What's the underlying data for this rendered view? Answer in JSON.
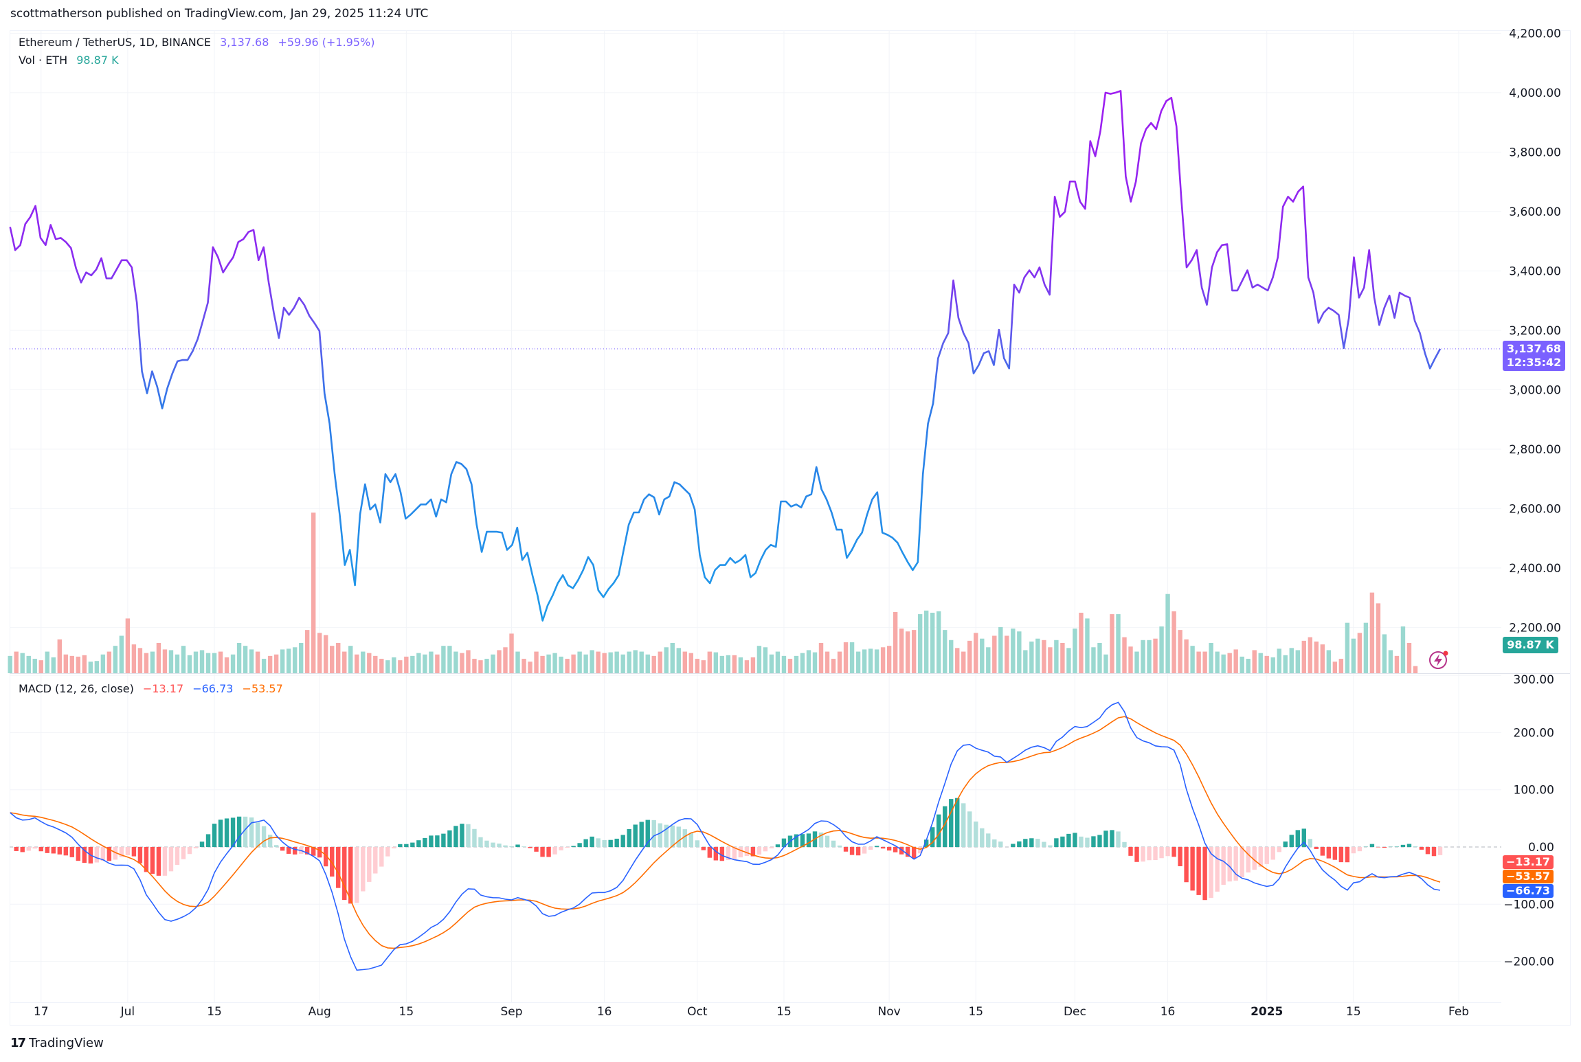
{
  "header": {
    "published": "scottmatherson published on TradingView.com, Jan 29, 2025 11:24 UTC"
  },
  "legend": {
    "symbol": "Ethereum / TetherUS, 1D, BINANCE",
    "price": "3,137.68",
    "change": "+59.96 (+1.95%)",
    "vol_label": "Vol · ETH",
    "vol_value": "98.87 K",
    "macd_label": "MACD (12, 26, close)",
    "macd_hist": "−13.17",
    "macd_line": "−66.73",
    "macd_signal": "−53.57"
  },
  "price_axis": [
    "4,200.00",
    "4,000.00",
    "3,800.00",
    "3,600.00",
    "3,400.00",
    "3,200.00",
    "3,000.00",
    "2,800.00",
    "2,600.00",
    "2,400.00",
    "2,200.00"
  ],
  "price_axis_values": [
    4200,
    4000,
    3800,
    3600,
    3400,
    3200,
    3000,
    2800,
    2600,
    2400,
    2200
  ],
  "macd_axis": [
    "300.00",
    "200.00",
    "100.00",
    "0.00",
    "−100.00",
    "−200.00"
  ],
  "macd_axis_values": [
    300,
    200,
    100,
    0,
    -100,
    -200
  ],
  "badges": {
    "last_price": "3,137.68",
    "countdown": "12:35:42",
    "volume": "98.87 K",
    "hist": "−13.17",
    "signal": "−53.57",
    "macd": "−66.73"
  },
  "time_axis": [
    {
      "label": "17",
      "date": "2024-06-17"
    },
    {
      "label": "Jul",
      "date": "2024-07-01"
    },
    {
      "label": "15",
      "date": "2024-07-15"
    },
    {
      "label": "Aug",
      "date": "2024-08-01"
    },
    {
      "label": "15",
      "date": "2024-08-15"
    },
    {
      "label": "Sep",
      "date": "2024-09-01"
    },
    {
      "label": "16",
      "date": "2024-09-16"
    },
    {
      "label": "Oct",
      "date": "2024-10-01"
    },
    {
      "label": "15",
      "date": "2024-10-15"
    },
    {
      "label": "Nov",
      "date": "2024-11-01"
    },
    {
      "label": "15",
      "date": "2024-11-15"
    },
    {
      "label": "Dec",
      "date": "2024-12-01"
    },
    {
      "label": "16",
      "date": "2024-12-16"
    },
    {
      "label": "2025",
      "date": "2025-01-01"
    },
    {
      "label": "15",
      "date": "2025-01-15"
    },
    {
      "label": "Feb",
      "date": "2025-02-01"
    }
  ],
  "footer": {
    "brand": "TradingView",
    "logo": "TV"
  },
  "colors": {
    "up": "#26a69a",
    "down": "#ef5350",
    "up_light": "#b2dfdb",
    "down_light": "#ffcdd2",
    "hist_up": "#26a69a",
    "hist_down": "#ff5252",
    "macd": "#2962ff",
    "signal": "#ff6d00",
    "price_hi": "#a21cf0",
    "price_lo": "#1e88e5",
    "badge_price": "#7b61ff"
  },
  "chart_data": [
    {
      "type": "line",
      "title": "Ethereum / TetherUS, 1D, BINANCE",
      "start_date": "2024-06-12",
      "end_date": "2025-01-29",
      "ylim": [
        2100,
        4250
      ],
      "close": [
        3548,
        3470,
        3487,
        3558,
        3582,
        3619,
        3511,
        3487,
        3555,
        3507,
        3511,
        3497,
        3477,
        3409,
        3361,
        3395,
        3385,
        3405,
        3443,
        3375,
        3375,
        3405,
        3436,
        3436,
        3412,
        3293,
        3062,
        2988,
        3062,
        3011,
        2937,
        3005,
        3055,
        3096,
        3100,
        3100,
        3130,
        3171,
        3232,
        3293,
        3480,
        3446,
        3395,
        3422,
        3446,
        3497,
        3507,
        3531,
        3538,
        3436,
        3480,
        3361,
        3259,
        3174,
        3276,
        3252,
        3276,
        3310,
        3286,
        3249,
        3225,
        3198,
        2988,
        2886,
        2716,
        2580,
        2410,
        2461,
        2342,
        2580,
        2682,
        2597,
        2614,
        2553,
        2716,
        2689,
        2716,
        2655,
        2566,
        2580,
        2597,
        2614,
        2614,
        2631,
        2573,
        2631,
        2621,
        2716,
        2757,
        2750,
        2733,
        2682,
        2546,
        2454,
        2522,
        2522,
        2522,
        2519,
        2461,
        2478,
        2536,
        2427,
        2451,
        2376,
        2308,
        2223,
        2274,
        2308,
        2349,
        2376,
        2342,
        2332,
        2359,
        2393,
        2437,
        2410,
        2325,
        2302,
        2329,
        2349,
        2376,
        2461,
        2546,
        2587,
        2587,
        2631,
        2648,
        2638,
        2580,
        2631,
        2641,
        2689,
        2682,
        2665,
        2648,
        2597,
        2444,
        2369,
        2349,
        2393,
        2410,
        2410,
        2434,
        2417,
        2427,
        2444,
        2369,
        2383,
        2427,
        2461,
        2478,
        2471,
        2624,
        2624,
        2607,
        2614,
        2604,
        2641,
        2648,
        2740,
        2665,
        2631,
        2587,
        2529,
        2529,
        2434,
        2461,
        2495,
        2519,
        2580,
        2631,
        2655,
        2519,
        2512,
        2502,
        2485,
        2451,
        2420,
        2393,
        2420,
        2716,
        2886,
        2954,
        3106,
        3157,
        3191,
        3368,
        3242,
        3191,
        3157,
        3055,
        3083,
        3123,
        3130,
        3083,
        3202,
        3106,
        3072,
        3354,
        3327,
        3378,
        3402,
        3378,
        3412,
        3354,
        3320,
        3650,
        3582,
        3599,
        3701,
        3701,
        3633,
        3609,
        3837,
        3786,
        3871,
        4000,
        3996,
        4000,
        4006,
        3718,
        3633,
        3701,
        3830,
        3877,
        3898,
        3877,
        3938,
        3972,
        3983,
        3887,
        3633,
        3412,
        3436,
        3470,
        3344,
        3286,
        3412,
        3463,
        3487,
        3490,
        3334,
        3334,
        3368,
        3402,
        3344,
        3354,
        3344,
        3334,
        3378,
        3446,
        3616,
        3650,
        3633,
        3667,
        3684,
        3378,
        3327,
        3225,
        3259,
        3276,
        3266,
        3252,
        3140,
        3242,
        3446,
        3310,
        3344,
        3470,
        3310,
        3218,
        3276,
        3317,
        3242,
        3327,
        3317,
        3310,
        3232,
        3191,
        3123,
        3072,
        3106,
        3137.68
      ]
    },
    {
      "type": "bar",
      "title": "Vol · ETH",
      "unit": "K",
      "values": [
        240,
        300,
        280,
        240,
        200,
        180,
        300,
        220,
        470,
        260,
        240,
        230,
        250,
        160,
        170,
        260,
        300,
        380,
        520,
        760,
        400,
        350,
        280,
        300,
        420,
        330,
        320,
        260,
        380,
        250,
        300,
        320,
        280,
        280,
        300,
        220,
        260,
        420,
        380,
        330,
        300,
        200,
        240,
        260,
        330,
        340,
        360,
        420,
        600,
        2230,
        560,
        530,
        380,
        420,
        300,
        380,
        260,
        300,
        280,
        240,
        200,
        180,
        220,
        180,
        230,
        240,
        280,
        260,
        300,
        260,
        380,
        380,
        300,
        280,
        320,
        200,
        180,
        200,
        260,
        320,
        360,
        550,
        300,
        200,
        160,
        300,
        240,
        260,
        280,
        230,
        200,
        260,
        300,
        260,
        320,
        300,
        280,
        290,
        300,
        260,
        300,
        320,
        300,
        260,
        240,
        300,
        360,
        420,
        350,
        300,
        280,
        200,
        180,
        300,
        290,
        240,
        250,
        250,
        220,
        180,
        220,
        380,
        360,
        260,
        300,
        240,
        200,
        240,
        280,
        320,
        290,
        420,
        300,
        200,
        300,
        430,
        430,
        300,
        330,
        340,
        330,
        360,
        380,
        850,
        620,
        580,
        600,
        820,
        870,
        840,
        860,
        600,
        460,
        350,
        300,
        450,
        560,
        480,
        360,
        520,
        640,
        520,
        620,
        580,
        320,
        440,
        480,
        460,
        360,
        460,
        420,
        350,
        620,
        840,
        760,
        360,
        420,
        260,
        820,
        820,
        500,
        370,
        300,
        460,
        460,
        480,
        650,
        1100,
        860,
        600,
        470,
        380,
        300,
        300,
        420,
        300,
        260,
        280,
        330,
        230,
        200,
        320,
        280,
        240,
        220,
        340,
        250,
        350,
        320,
        450,
        500,
        440,
        400,
        320,
        160,
        200,
        700,
        480,
        560,
        700,
        1120,
        970,
        540,
        320,
        240,
        650,
        420,
        98.87
      ]
    },
    {
      "type": "line",
      "title": "MACD (12, 26, close)",
      "fast": 12,
      "slow": 26,
      "signal": 9,
      "last": {
        "histogram": -13.17,
        "macd": -66.73,
        "signal": -53.57
      },
      "ylim": [
        -250,
        300
      ]
    }
  ]
}
